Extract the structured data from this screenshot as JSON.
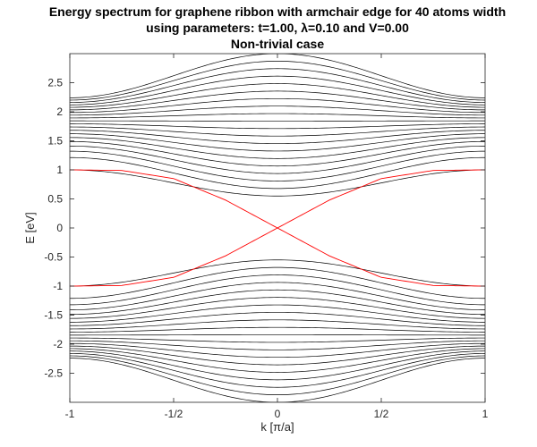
{
  "chart_data": {
    "type": "line",
    "title_lines": [
      "Energy spectrum for graphene ribbon with armchair edge for 40 atoms width",
      "using parameters: t=1.00, λ=0.10 and V=0.00",
      "Non-trivial case"
    ],
    "xlabel": "k [π/a]",
    "ylabel": "E [eV]",
    "xlim": [
      -1,
      1
    ],
    "ylim": [
      -3,
      3
    ],
    "xticks": [
      {
        "value": -1,
        "label": "-1"
      },
      {
        "value": -0.5,
        "label": "-1/2"
      },
      {
        "value": 0,
        "label": "0"
      },
      {
        "value": 0.5,
        "label": "1/2"
      },
      {
        "value": 1,
        "label": "1"
      }
    ],
    "yticks": [
      {
        "value": 2.5,
        "label": "2.5"
      },
      {
        "value": 2,
        "label": "2"
      },
      {
        "value": 1.5,
        "label": "1.5"
      },
      {
        "value": 1,
        "label": "1"
      },
      {
        "value": 0.5,
        "label": "0.5"
      },
      {
        "value": 0,
        "label": "0"
      },
      {
        "value": -0.5,
        "label": "-0.5"
      },
      {
        "value": -1,
        "label": "-1"
      },
      {
        "value": -1.5,
        "label": "-1.5"
      },
      {
        "value": -2,
        "label": "-2"
      },
      {
        "value": -2.5,
        "label": "-2.5"
      }
    ],
    "grid": false,
    "bulk_band_color": "#000000",
    "edge_state_color": "#ff0000",
    "bulk_band_count_per_side": 20,
    "bulk_band_edges": {
      "center_min": 0.55,
      "center_max": 3.0,
      "edge_min": 1.0,
      "edge_max": 2.24
    },
    "edge_states": [
      {
        "k": [
          -1,
          -0.75,
          -0.5,
          -0.25,
          0,
          0.25,
          0.5,
          0.75,
          1
        ],
        "E": [
          1.0,
          0.99,
          0.85,
          0.48,
          0.0,
          -0.48,
          -0.85,
          -0.99,
          -1.0
        ]
      },
      {
        "k": [
          -1,
          -0.75,
          -0.5,
          -0.25,
          0,
          0.25,
          0.5,
          0.75,
          1
        ],
        "E": [
          -1.0,
          -0.99,
          -0.85,
          -0.48,
          0.0,
          0.48,
          0.85,
          0.99,
          1.0
        ]
      }
    ]
  }
}
